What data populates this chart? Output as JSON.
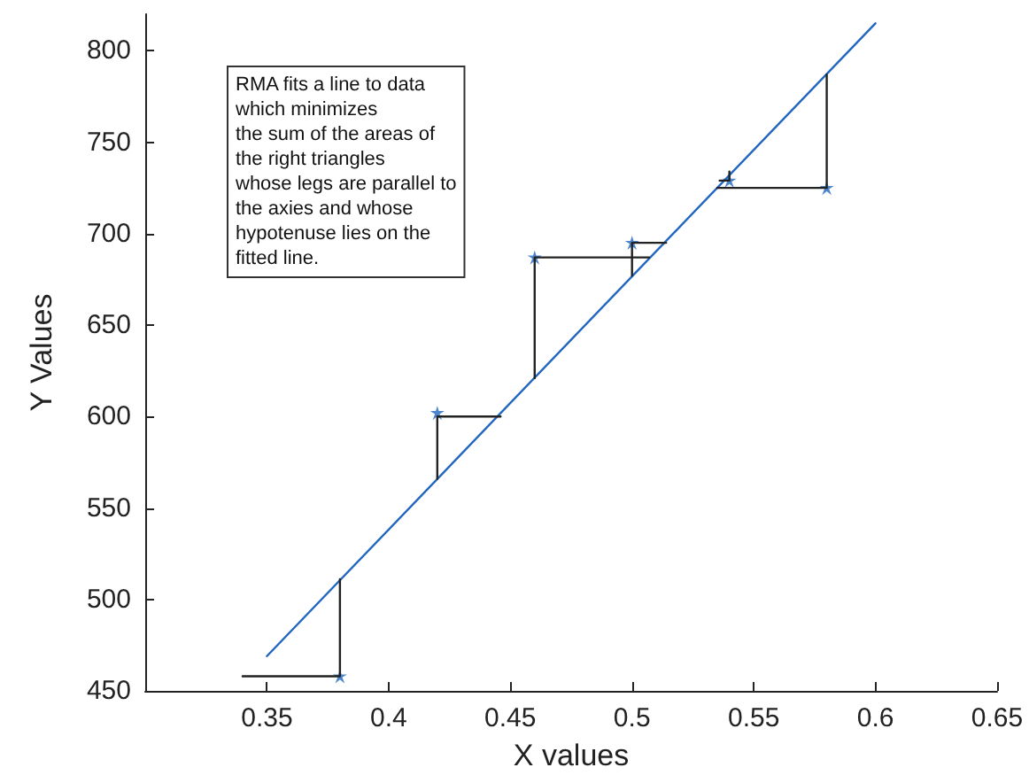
{
  "chart_data": {
    "type": "scatter",
    "xlabel": "X values",
    "ylabel": "Y Values",
    "xlim": [
      0.3,
      0.65
    ],
    "xticks": [
      0.35,
      0.4,
      0.45,
      0.5,
      0.55,
      0.6,
      0.65
    ],
    "ylim": [
      450,
      820
    ],
    "yticks": [
      450,
      500,
      550,
      600,
      650,
      700,
      750,
      800
    ],
    "grid": false,
    "annotations": [
      "RMA fits a line to data\nwhich minimizes\nthe sum of the areas of\nthe right triangles\nwhose legs are parallel to\nthe axies and whose\nhypotenuse lies on the\nfitted line."
    ],
    "series": [
      {
        "type": "line",
        "color": "#2166c0",
        "marker": "none",
        "line_style": "solid",
        "x": [
          0.35,
          0.6
        ],
        "values": [
          469,
          815
        ]
      },
      {
        "type": "line",
        "color": "#222222",
        "marker": "none",
        "line_style": "solid",
        "x": [
          0.34,
          0.38,
          0.38
        ],
        "values": [
          458,
          458,
          511
        ]
      },
      {
        "type": "line",
        "color": "#222222",
        "marker": "none",
        "line_style": "solid",
        "x": [
          0.446,
          0.42,
          0.42
        ],
        "values": [
          600,
          600,
          566
        ]
      },
      {
        "type": "line",
        "color": "#222222",
        "marker": "none",
        "line_style": "solid",
        "x": [
          0.507,
          0.46,
          0.46
        ],
        "values": [
          687,
          687,
          621
        ]
      },
      {
        "type": "line",
        "color": "#222222",
        "marker": "none",
        "line_style": "solid",
        "x": [
          0.514,
          0.5,
          0.5
        ],
        "values": [
          695,
          695,
          677
        ]
      },
      {
        "type": "line",
        "color": "#222222",
        "marker": "none",
        "line_style": "solid",
        "x": [
          0.535,
          0.58,
          0.58
        ],
        "values": [
          725,
          725,
          787
        ]
      },
      {
        "type": "line",
        "color": "#222222",
        "marker": "none",
        "line_style": "solid",
        "x": [
          0.536,
          0.54,
          0.54
        ],
        "values": [
          729,
          729,
          734
        ]
      },
      {
        "color": "#2166c0",
        "marker": "star",
        "x": [
          0.38,
          0.42,
          0.46,
          0.5,
          0.54,
          0.58
        ],
        "values": [
          458,
          602,
          687,
          695,
          729,
          725
        ]
      }
    ]
  }
}
